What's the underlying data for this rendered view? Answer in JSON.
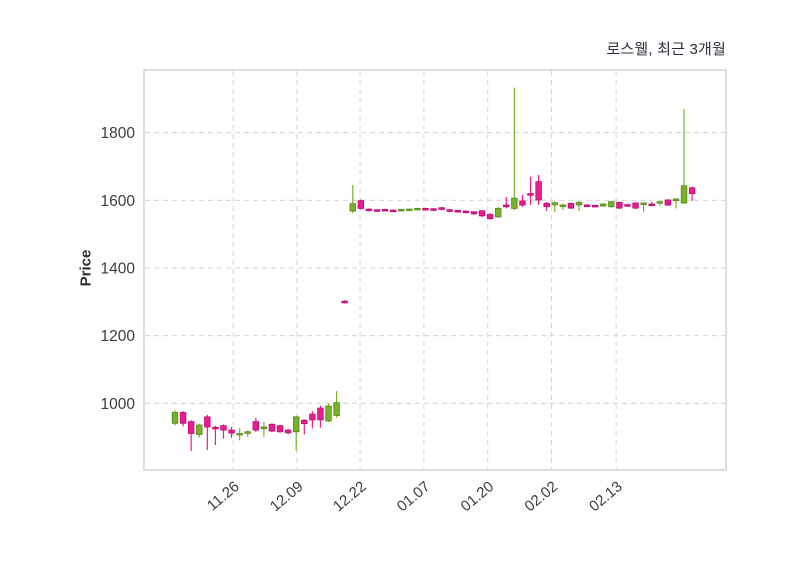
{
  "chart_data": {
    "type": "candlestick",
    "title": "로스웰, 최근 3개월",
    "ylabel": "Price",
    "xlabel": "",
    "grid": true,
    "legend": "none",
    "ylim": [
      803,
      1985
    ],
    "yticks": [
      1000,
      1200,
      1400,
      1600,
      1800
    ],
    "xticks": [
      {
        "label": "11.26",
        "i": 7.2
      },
      {
        "label": "12.09",
        "i": 15.1
      },
      {
        "label": "12.22",
        "i": 22.9
      },
      {
        "label": "01.07",
        "i": 30.8
      },
      {
        "label": "01.20",
        "i": 38.7
      },
      {
        "label": "02.02",
        "i": 46.6
      },
      {
        "label": "02.13",
        "i": 54.6
      }
    ],
    "up_color": "#78b22a",
    "up_border": "#58881b",
    "down_color": "#e81e8e",
    "down_border": "#c00a72",
    "grid_color": "#d8d8d8",
    "spine_color": "#d4d4d4",
    "tick_label_color": "#3c3c3c",
    "candles_note": "each candle is [open, high, low, close]; session index = array position",
    "candles": [
      [
        941,
        980,
        935,
        973
      ],
      [
        973,
        977,
        932,
        941
      ],
      [
        946,
        950,
        859,
        911
      ],
      [
        908,
        940,
        899,
        936
      ],
      [
        960,
        966,
        862,
        930
      ],
      [
        929,
        934,
        877,
        928
      ],
      [
        934,
        938,
        896,
        921
      ],
      [
        921,
        930,
        898,
        912
      ],
      [
        908,
        926,
        891,
        911
      ],
      [
        912,
        920,
        900,
        916
      ],
      [
        946,
        957,
        915,
        921
      ],
      [
        925,
        946,
        901,
        930
      ],
      [
        938,
        941,
        915,
        918
      ],
      [
        934,
        937,
        913,
        916
      ],
      [
        921,
        925,
        908,
        913
      ],
      [
        916,
        963,
        861,
        960
      ],
      [
        950,
        953,
        908,
        940
      ],
      [
        968,
        977,
        926,
        951
      ],
      [
        986,
        993,
        928,
        951
      ],
      [
        948,
        1000,
        944,
        992
      ],
      [
        964,
        1036,
        958,
        1002
      ],
      [
        1302,
        1305,
        1295,
        1297
      ],
      [
        1568,
        1645,
        1562,
        1590
      ],
      [
        1599,
        1602,
        1573,
        1576
      ],
      [
        1574,
        1576,
        1567,
        1570
      ],
      [
        1572,
        1574,
        1566,
        1569
      ],
      [
        1573,
        1575,
        1568,
        1570
      ],
      [
        1571,
        1573,
        1565,
        1568
      ],
      [
        1569,
        1575,
        1567,
        1573
      ],
      [
        1570,
        1576,
        1568,
        1574
      ],
      [
        1572,
        1578,
        1570,
        1576
      ],
      [
        1576,
        1578,
        1569,
        1572
      ],
      [
        1575,
        1577,
        1568,
        1571
      ],
      [
        1578,
        1580,
        1570,
        1573
      ],
      [
        1572,
        1574,
        1565,
        1568
      ],
      [
        1570,
        1572,
        1563,
        1566
      ],
      [
        1568,
        1570,
        1561,
        1564
      ],
      [
        1566,
        1568,
        1556,
        1560
      ],
      [
        1569,
        1571,
        1550,
        1554
      ],
      [
        1558,
        1562,
        1542,
        1546
      ],
      [
        1551,
        1580,
        1548,
        1576
      ],
      [
        1586,
        1610,
        1576,
        1581
      ],
      [
        1576,
        1933,
        1571,
        1606
      ],
      [
        1598,
        1616,
        1580,
        1586
      ],
      [
        1620,
        1670,
        1586,
        1615
      ],
      [
        1655,
        1675,
        1586,
        1601
      ],
      [
        1591,
        1595,
        1568,
        1581
      ],
      [
        1586,
        1596,
        1566,
        1593
      ],
      [
        1584,
        1590,
        1571,
        1586
      ],
      [
        1591,
        1593,
        1574,
        1577
      ],
      [
        1586,
        1597,
        1568,
        1594
      ],
      [
        1586,
        1589,
        1580,
        1583
      ],
      [
        1585,
        1587,
        1579,
        1582
      ],
      [
        1583,
        1592,
        1580,
        1589
      ],
      [
        1581,
        1598,
        1578,
        1596
      ],
      [
        1594,
        1596,
        1574,
        1577
      ],
      [
        1587,
        1590,
        1581,
        1584
      ],
      [
        1592,
        1594,
        1574,
        1577
      ],
      [
        1590,
        1594,
        1566,
        1592
      ],
      [
        1589,
        1596,
        1582,
        1585
      ],
      [
        1594,
        1598,
        1584,
        1596
      ],
      [
        1601,
        1603,
        1583,
        1586
      ],
      [
        1599,
        1606,
        1576,
        1604
      ],
      [
        1592,
        1870,
        1589,
        1643
      ],
      [
        1637,
        1641,
        1598,
        1620
      ]
    ]
  }
}
